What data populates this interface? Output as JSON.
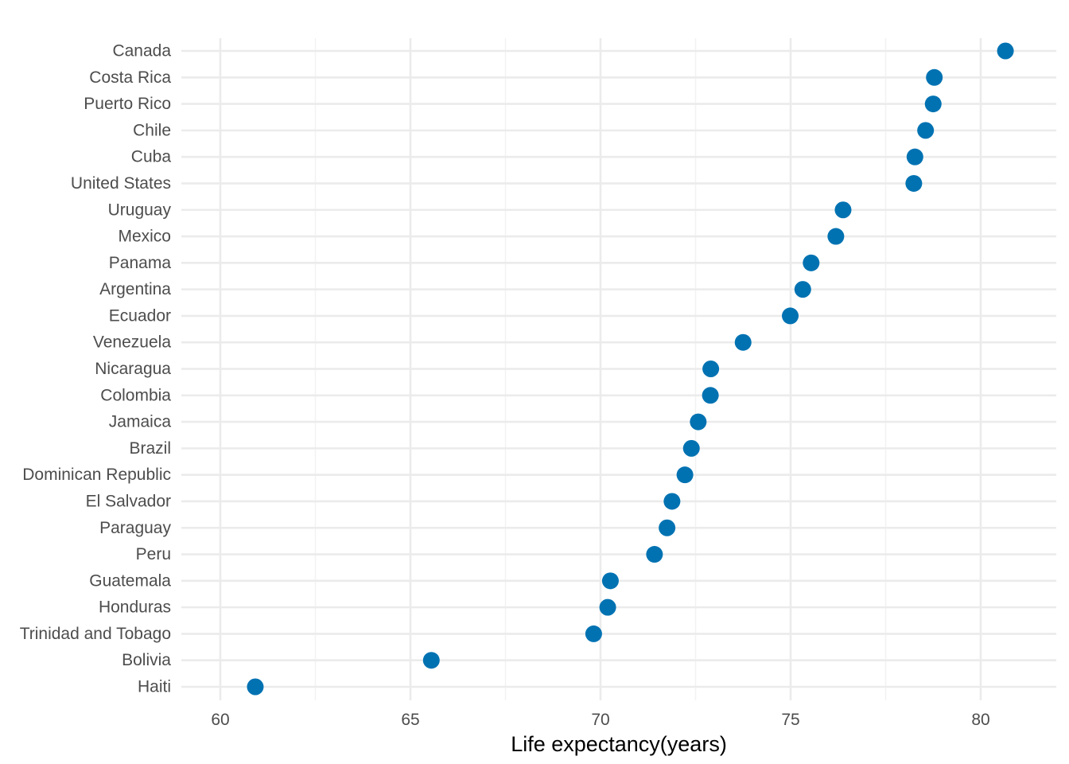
{
  "chart_data": {
    "type": "scatter",
    "title": "",
    "xlabel": "Life expectancy(years)",
    "ylabel": "",
    "xlim": [
      59.0,
      81.9
    ],
    "x_ticks": [
      60,
      65,
      70,
      75,
      80
    ],
    "x_tick_labels": [
      "60",
      "65",
      "70",
      "75",
      "80"
    ],
    "grid": true,
    "legend": "none",
    "marker_color": "#0072B2",
    "categories": [
      "Canada",
      "Costa Rica",
      "Puerto Rico",
      "Chile",
      "Cuba",
      "United States",
      "Uruguay",
      "Mexico",
      "Panama",
      "Argentina",
      "Ecuador",
      "Venezuela",
      "Nicaragua",
      "Colombia",
      "Jamaica",
      "Brazil",
      "Dominican Republic",
      "El Salvador",
      "Paraguay",
      "Peru",
      "Guatemala",
      "Honduras",
      "Trinidad and Tobago",
      "Bolivia",
      "Haiti"
    ],
    "values": [
      80.65,
      78.78,
      78.75,
      78.55,
      78.27,
      78.24,
      76.38,
      76.19,
      75.54,
      75.32,
      74.99,
      73.75,
      72.9,
      72.89,
      72.57,
      72.39,
      72.22,
      71.88,
      71.75,
      71.42,
      70.26,
      70.19,
      69.82,
      65.55,
      60.92
    ]
  }
}
